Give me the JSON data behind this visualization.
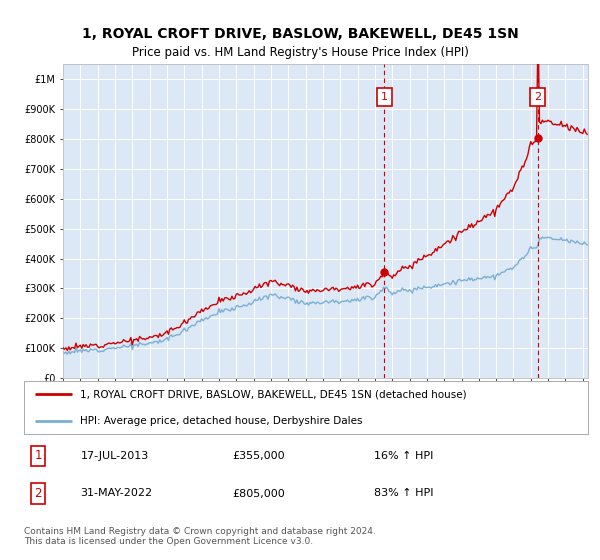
{
  "title": "1, ROYAL CROFT DRIVE, BASLOW, BAKEWELL, DE45 1SN",
  "subtitle": "Price paid vs. HM Land Registry's House Price Index (HPI)",
  "legend_line1": "1, ROYAL CROFT DRIVE, BASLOW, BAKEWELL, DE45 1SN (detached house)",
  "legend_line2": "HPI: Average price, detached house, Derbyshire Dales",
  "sale1_date": "17-JUL-2013",
  "sale1_price": "£355,000",
  "sale1_hpi": "16% ↑ HPI",
  "sale2_date": "31-MAY-2022",
  "sale2_price": "£805,000",
  "sale2_hpi": "83% ↑ HPI",
  "footer": "Contains HM Land Registry data © Crown copyright and database right 2024.\nThis data is licensed under the Open Government Licence v3.0.",
  "ylim": [
    0,
    1050000
  ],
  "yticks": [
    0,
    100000,
    200000,
    300000,
    400000,
    500000,
    600000,
    700000,
    800000,
    900000,
    1000000
  ],
  "plot_bg_color": "#dce8f5",
  "hpi_color": "#7bafd4",
  "sale_color": "#cc0000",
  "sale1_x_year": 2013.54,
  "sale2_x_year": 2022.41,
  "sale1_price_val": 355000,
  "sale2_price_val": 805000,
  "xmin": 1995.0,
  "xmax": 2025.3
}
